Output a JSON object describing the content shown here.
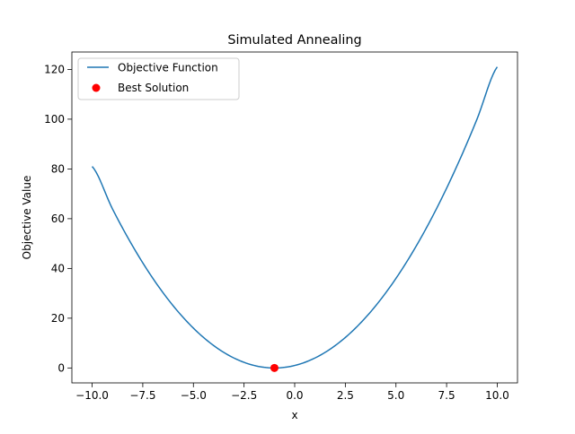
{
  "chart_data": {
    "type": "line",
    "title": "Simulated Annealing",
    "xlabel": "x",
    "ylabel": "Objective Value",
    "xlim": [
      -11,
      11
    ],
    "ylim": [
      -6,
      127
    ],
    "xticks": [
      -10,
      -7.5,
      -5,
      -2.5,
      0,
      2.5,
      5,
      7.5,
      10
    ],
    "xtick_labels": [
      "−10.0",
      "−7.5",
      "−5.0",
      "−2.5",
      "0.0",
      "2.5",
      "5.0",
      "7.5",
      "10.0"
    ],
    "yticks": [
      0,
      20,
      40,
      60,
      80,
      100,
      120
    ],
    "ytick_labels": [
      "0",
      "20",
      "40",
      "60",
      "80",
      "100",
      "120"
    ],
    "grid": false,
    "legend": {
      "position": "top-left",
      "entries": [
        "Objective Function",
        "Best Solution"
      ]
    },
    "series": [
      {
        "name": "Objective Function",
        "kind": "line",
        "color": "#1f77b4",
        "x": [
          -10,
          -9,
          -8,
          -7,
          -6,
          -5,
          -4,
          -3,
          -2,
          -1,
          0,
          1,
          2,
          3,
          4,
          5,
          6,
          7,
          8,
          9,
          10
        ],
        "y": [
          81,
          64,
          49,
          36,
          25,
          16,
          9,
          4,
          1,
          0,
          1,
          4,
          9,
          16,
          25,
          36,
          49,
          64,
          81,
          100,
          121
        ]
      },
      {
        "name": "Best Solution",
        "kind": "scatter",
        "color": "#ff0000",
        "x": [
          -1
        ],
        "y": [
          0
        ]
      }
    ]
  }
}
